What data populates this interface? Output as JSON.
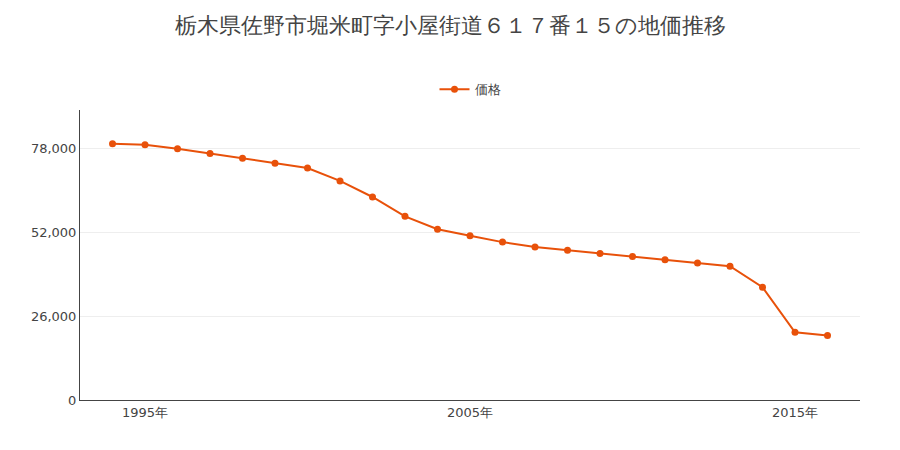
{
  "chart_data": {
    "type": "line",
    "title": "栃木県佐野市堀米町字小屋街道６１７番１５の地価推移",
    "x": [
      1994,
      1995,
      1996,
      1997,
      1998,
      1999,
      2000,
      2001,
      2002,
      2003,
      2004,
      2005,
      2006,
      2007,
      2008,
      2009,
      2010,
      2011,
      2012,
      2013,
      2014,
      2015,
      2016
    ],
    "series": [
      {
        "name": "価格",
        "color": "#e8510a",
        "values": [
          79500,
          79200,
          78000,
          76500,
          75000,
          73500,
          72000,
          68000,
          63000,
          57000,
          53000,
          51000,
          49000,
          47500,
          46500,
          45500,
          44500,
          43500,
          42500,
          41500,
          35000,
          21000,
          20000
        ]
      }
    ],
    "marker": "circle",
    "xlim": [
      1993,
      2017
    ],
    "xticks": [
      {
        "value": 1995,
        "label": "1995年"
      },
      {
        "value": 2005,
        "label": "2005年"
      },
      {
        "value": 2015,
        "label": "2015年"
      }
    ],
    "ylim": [
      0,
      90000
    ],
    "yticks": [
      0,
      {
        "value": 26000,
        "label": "26,000"
      },
      {
        "value": 52000,
        "label": "52,000"
      },
      {
        "value": 78000,
        "label": "78,000"
      }
    ],
    "grid": "y",
    "legend": "top"
  }
}
